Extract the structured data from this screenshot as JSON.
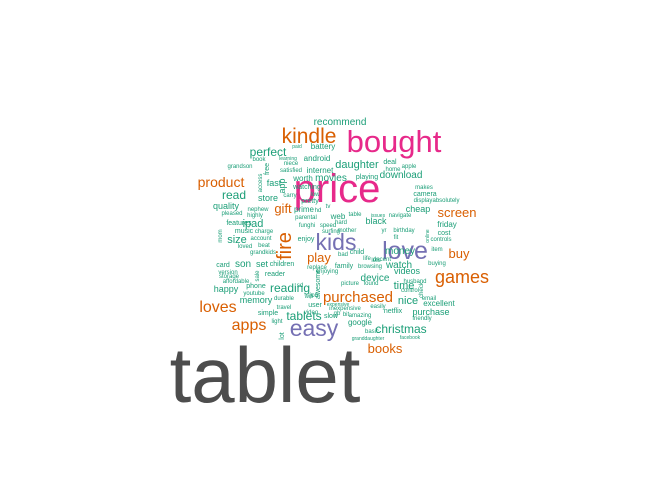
{
  "colors": {
    "background": "#ffffff",
    "gray": "#4d4d4d",
    "magenta": "#e7298a",
    "orange": "#d95f02",
    "purple": "#7570b3",
    "green": "#1b9e77"
  },
  "words": [
    {
      "text": "tablet",
      "c": "gray"
    },
    {
      "text": "price",
      "c": "magenta"
    },
    {
      "text": "bought",
      "c": "magenta"
    },
    {
      "text": "kindle",
      "c": "orange"
    },
    {
      "text": "love",
      "c": "purple"
    },
    {
      "text": "kids",
      "c": "purple"
    },
    {
      "text": "easy",
      "c": "purple"
    },
    {
      "text": "fire",
      "c": "orange"
    },
    {
      "text": "games",
      "c": "orange"
    },
    {
      "text": "loves",
      "c": "orange"
    },
    {
      "text": "apps",
      "c": "orange"
    },
    {
      "text": "purchased",
      "c": "orange"
    },
    {
      "text": "product",
      "c": "orange"
    },
    {
      "text": "screen",
      "c": "orange"
    },
    {
      "text": "buy",
      "c": "orange"
    },
    {
      "text": "books",
      "c": "orange"
    },
    {
      "text": "play",
      "c": "orange"
    },
    {
      "text": "gift",
      "c": "orange"
    },
    {
      "text": "perfect",
      "c": "green"
    },
    {
      "text": "recommend",
      "c": "green"
    },
    {
      "text": "read",
      "c": "green"
    },
    {
      "text": "ipad",
      "c": "green"
    },
    {
      "text": "size",
      "c": "green"
    },
    {
      "text": "reading",
      "c": "green"
    },
    {
      "text": "tablets",
      "c": "green"
    },
    {
      "text": "christmas",
      "c": "green"
    },
    {
      "text": "nice",
      "c": "green"
    },
    {
      "text": "time",
      "c": "green"
    },
    {
      "text": "watch",
      "c": "green"
    },
    {
      "text": "device",
      "c": "green"
    },
    {
      "text": "money",
      "c": "green"
    },
    {
      "text": "daughter",
      "c": "green"
    },
    {
      "text": "movies",
      "c": "green"
    },
    {
      "text": "download",
      "c": "green"
    },
    {
      "text": "quality",
      "c": "green"
    },
    {
      "text": "store",
      "c": "green"
    },
    {
      "text": "fast",
      "c": "green"
    },
    {
      "text": "son",
      "c": "green"
    },
    {
      "text": "set",
      "c": "green"
    },
    {
      "text": "happy",
      "c": "green"
    },
    {
      "text": "memory",
      "c": "green"
    },
    {
      "text": "android",
      "c": "green"
    },
    {
      "text": "internet",
      "c": "green"
    },
    {
      "text": "battery",
      "c": "green"
    },
    {
      "text": "videos",
      "c": "green"
    },
    {
      "text": "purchase",
      "c": "green"
    },
    {
      "text": "excellent",
      "c": "green"
    },
    {
      "text": "cheap",
      "c": "green"
    },
    {
      "text": "friday",
      "c": "green"
    },
    {
      "text": "cost",
      "c": "green"
    },
    {
      "text": "google",
      "c": "green"
    },
    {
      "text": "netflix",
      "c": "green"
    },
    {
      "text": "prime",
      "c": "green"
    },
    {
      "text": "app",
      "c": "green"
    },
    {
      "text": "features",
      "c": "green"
    },
    {
      "text": "music",
      "c": "green"
    },
    {
      "text": "simple",
      "c": "green"
    },
    {
      "text": "card",
      "c": "green"
    },
    {
      "text": "children",
      "c": "green"
    },
    {
      "text": "reader",
      "c": "green"
    },
    {
      "text": "phone",
      "c": "green"
    },
    {
      "text": "web",
      "c": "green"
    },
    {
      "text": "black",
      "c": "green"
    },
    {
      "text": "playing",
      "c": "green"
    },
    {
      "text": "deal",
      "c": "green"
    },
    {
      "text": "camera",
      "c": "green"
    },
    {
      "text": "email",
      "c": "green"
    },
    {
      "text": "awesome",
      "c": "green"
    },
    {
      "text": "family",
      "c": "green"
    },
    {
      "text": "worth",
      "c": "green"
    },
    {
      "text": "watching",
      "c": "green"
    },
    {
      "text": "pretty",
      "c": "green"
    },
    {
      "text": "enjoy",
      "c": "green"
    },
    {
      "text": "light",
      "c": "green"
    },
    {
      "text": "slow",
      "c": "green"
    },
    {
      "text": "inexpensive",
      "c": "green"
    },
    {
      "text": "friendly",
      "c": "green"
    },
    {
      "text": "basic",
      "c": "green"
    },
    {
      "text": "granddaughter",
      "c": "green"
    },
    {
      "text": "facebook",
      "c": "green"
    },
    {
      "text": "youtube",
      "c": "green"
    },
    {
      "text": "storage",
      "c": "green"
    },
    {
      "text": "affordable",
      "c": "green"
    },
    {
      "text": "version",
      "c": "green"
    },
    {
      "text": "loved",
      "c": "green"
    },
    {
      "text": "beat",
      "c": "green"
    },
    {
      "text": "account",
      "c": "green"
    },
    {
      "text": "charge",
      "c": "green"
    },
    {
      "text": "mom",
      "c": "green"
    },
    {
      "text": "pleased",
      "c": "green"
    },
    {
      "text": "highly",
      "c": "green"
    },
    {
      "text": "nephew",
      "c": "green"
    },
    {
      "text": "grandson",
      "c": "green"
    },
    {
      "text": "book",
      "c": "green"
    },
    {
      "text": "paid",
      "c": "green"
    },
    {
      "text": "learning",
      "c": "green"
    },
    {
      "text": "niece",
      "c": "green"
    },
    {
      "text": "satisfied",
      "c": "green"
    },
    {
      "text": "home",
      "c": "green"
    },
    {
      "text": "apple",
      "c": "green"
    },
    {
      "text": "makes",
      "c": "green"
    },
    {
      "text": "display",
      "c": "green"
    },
    {
      "text": "absolutely",
      "c": "green"
    },
    {
      "text": "navigate",
      "c": "green"
    },
    {
      "text": "issues",
      "c": "green"
    },
    {
      "text": "online",
      "c": "green"
    },
    {
      "text": "controls",
      "c": "green"
    },
    {
      "text": "item",
      "c": "green"
    },
    {
      "text": "buying",
      "c": "green"
    },
    {
      "text": "husband",
      "c": "green"
    },
    {
      "text": "control",
      "c": "green"
    },
    {
      "text": "check",
      "c": "green"
    },
    {
      "text": "easily",
      "c": "green"
    },
    {
      "text": "amazing",
      "c": "green"
    },
    {
      "text": "bit",
      "c": "green"
    },
    {
      "text": "picture",
      "c": "green"
    },
    {
      "text": "found",
      "c": "green"
    },
    {
      "text": "user",
      "c": "green"
    },
    {
      "text": "expensive",
      "c": "green"
    },
    {
      "text": "video",
      "c": "green"
    },
    {
      "text": "travel",
      "c": "green"
    },
    {
      "text": "durable",
      "c": "green"
    },
    {
      "text": "wifi",
      "c": "green"
    },
    {
      "text": "browsing",
      "c": "green"
    },
    {
      "text": "replace",
      "c": "green"
    },
    {
      "text": "enjoying",
      "c": "green"
    },
    {
      "text": "lots",
      "c": "green"
    },
    {
      "text": "decent",
      "c": "green"
    },
    {
      "text": "birthday",
      "c": "green"
    },
    {
      "text": "child",
      "c": "green"
    },
    {
      "text": "bad",
      "c": "green"
    },
    {
      "text": "mother",
      "c": "green"
    },
    {
      "text": "surfing",
      "c": "green"
    },
    {
      "text": "funghi",
      "c": "green"
    },
    {
      "text": "speed",
      "c": "green"
    },
    {
      "text": "parental",
      "c": "green"
    },
    {
      "text": "hard",
      "c": "green"
    },
    {
      "text": "table",
      "c": "green"
    },
    {
      "text": "low",
      "c": "green"
    },
    {
      "text": "carry",
      "c": "green"
    },
    {
      "text": "hd",
      "c": "green"
    },
    {
      "text": "sale",
      "c": "green"
    },
    {
      "text": "grandkids",
      "c": "green"
    },
    {
      "text": "access",
      "c": "green"
    },
    {
      "text": "free",
      "c": "green"
    },
    {
      "text": "lot",
      "c": "green"
    },
    {
      "text": "job",
      "c": "green"
    },
    {
      "text": "life",
      "c": "green"
    },
    {
      "text": "gb",
      "c": "green"
    },
    {
      "text": "sd",
      "c": "green"
    },
    {
      "text": "tv",
      "c": "green"
    },
    {
      "text": "fit",
      "c": "green"
    },
    {
      "text": "yr",
      "c": "green"
    }
  ]
}
